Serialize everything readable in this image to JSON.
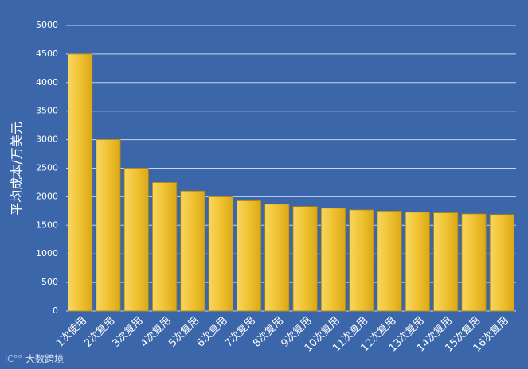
{
  "chart_data": {
    "type": "bar",
    "y_label": "平均成本/万美元",
    "categories": [
      "1次使用",
      "2次复用",
      "3次复用",
      "4次复用",
      "5次复用",
      "6次复用",
      "7次复用",
      "8次复用",
      "9次复用",
      "10次复用",
      "11次复用",
      "12次复用",
      "13次复用",
      "14次复用",
      "15次复用",
      "16次复用"
    ],
    "values": [
      4500,
      3000,
      2500,
      2250,
      2100,
      2000,
      1930,
      1870,
      1830,
      1800,
      1770,
      1750,
      1730,
      1720,
      1700,
      1690
    ],
    "color": "#f0c232",
    "ylim": [
      0,
      5000
    ],
    "yticks": [
      0,
      500,
      1000,
      1500,
      2000,
      2500,
      3000,
      3500,
      4000,
      4500,
      5000
    ],
    "grid": true
  },
  "watermark": "大数跨境"
}
